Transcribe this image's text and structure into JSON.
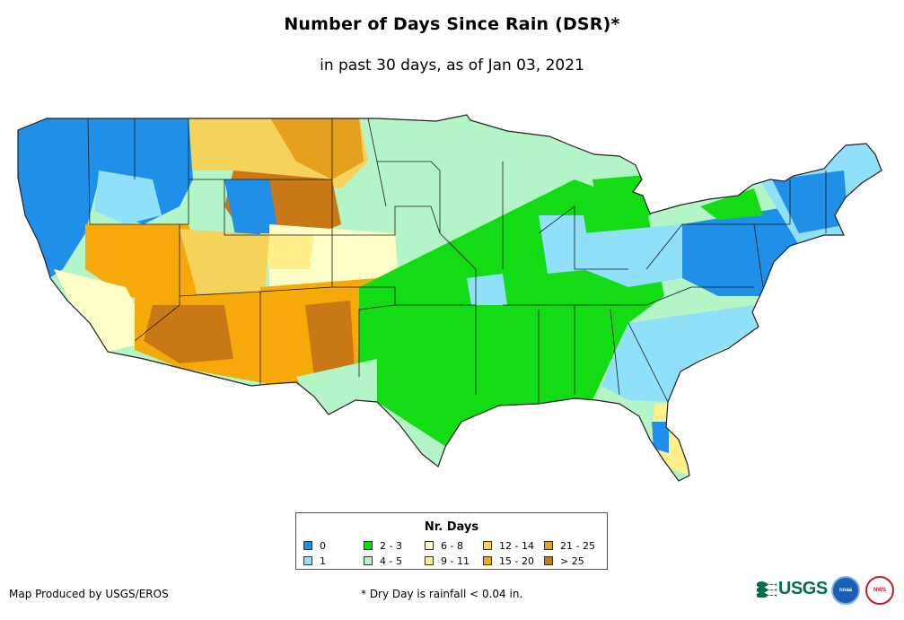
{
  "title": "Number of Days Since Rain (DSR)*",
  "subtitle": "in past 30 days, as of Jan 03, 2021",
  "legend": {
    "title": "Nr. Days",
    "items": [
      {
        "label": "0",
        "color": "#1f8fe8"
      },
      {
        "label": "1",
        "color": "#8fe0f8"
      },
      {
        "label": "2 - 3",
        "color": "#14dc14"
      },
      {
        "label": "4 - 5",
        "color": "#b4f5c8"
      },
      {
        "label": "6 - 8",
        "color": "#ffffc8"
      },
      {
        "label": "9 - 11",
        "color": "#fff08c"
      },
      {
        "label": "12 - 14",
        "color": "#f5d25a"
      },
      {
        "label": "15 - 20",
        "color": "#f5aa0a"
      },
      {
        "label": "21 - 25",
        "color": "#e6a01e"
      },
      {
        "label": "> 25",
        "color": "#c87814"
      }
    ]
  },
  "footer": {
    "credit": "Map Produced by USGS/EROS",
    "footnote": "* Dry Day is rainfall < 0.04 in.",
    "usgs_logo": "USGS",
    "noaa_logo": "noaa",
    "nws_logo": "NWS"
  }
}
